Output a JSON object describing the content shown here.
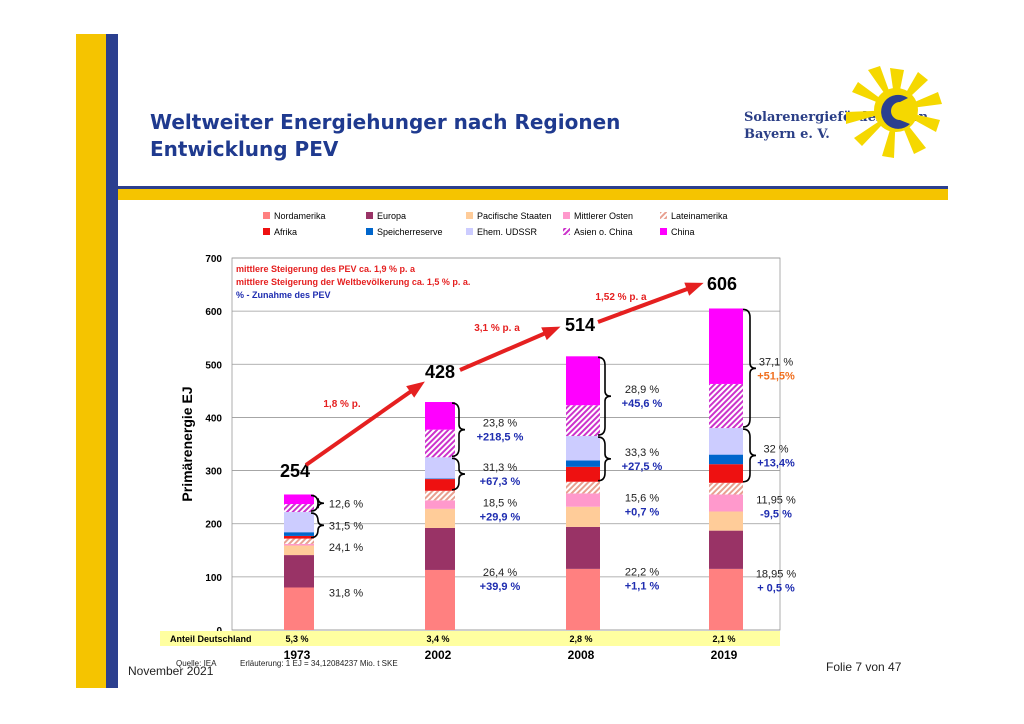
{
  "slide": {
    "title1": "Weltweiter Energiehunger nach Regionen",
    "title2": "Entwicklung PEV",
    "logo_line1": "Solarenergieförderverein",
    "logo_line2": "Bayern e. V.",
    "footer_left": "November 2021",
    "footer_right": "Folie 7 von 47",
    "colors": {
      "brand_yellow": "#F5C400",
      "brand_blue": "#2B3F8F",
      "title_blue": "#1F3A8F"
    }
  },
  "chart_data": {
    "type": "bar",
    "stacked": true,
    "ylabel": "Primärenergie EJ",
    "ylim": [
      0,
      700
    ],
    "yticks": [
      0,
      100,
      200,
      300,
      400,
      500,
      600,
      700
    ],
    "grid": true,
    "legend_position": "top",
    "categories": [
      "1973",
      "2002",
      "2008",
      "2019"
    ],
    "totals": [
      "254",
      "428",
      "514",
      "606"
    ],
    "series": [
      {
        "name": "Nordamerika",
        "color": "#FF8080",
        "values": [
          80,
          113,
          115,
          115
        ]
      },
      {
        "name": "Europa",
        "color": "#993366",
        "values": [
          61,
          79,
          79,
          72
        ]
      },
      {
        "name": "Pacifische Staaten",
        "color": "#FFCC99",
        "values": [
          18,
          36,
          38,
          36
        ]
      },
      {
        "name": "Mittlerer Osten",
        "color": "#FF99CC",
        "values": [
          3,
          16,
          25,
          32
        ]
      },
      {
        "name": "Lateinamerika",
        "color": "#E8A090",
        "values": [
          10,
          18,
          22,
          22
        ],
        "pattern": "hatch"
      },
      {
        "name": "Afrika",
        "color": "#EE1111",
        "values": [
          5,
          22,
          28,
          35
        ]
      },
      {
        "name": "Speicherreserve",
        "color": "#0066CC",
        "values": [
          7,
          1,
          12,
          18
        ]
      },
      {
        "name": "Ehem. UDSSR",
        "color": "#CCCCFF",
        "values": [
          38,
          40,
          46,
          50
        ]
      },
      {
        "name": "Asien o. China",
        "color": "#CC33CC",
        "values": [
          15,
          52,
          58,
          83
        ],
        "pattern": "hatch"
      },
      {
        "name": "China",
        "color": "#FF00FF",
        "values": [
          18,
          52,
          92,
          142
        ]
      }
    ],
    "brace_labels": [
      [
        {
          "pct": "12,6 %",
          "change": ""
        },
        {
          "pct": "31,5 %",
          "change": ""
        },
        {
          "pct": "24,1 %",
          "change": ""
        },
        {
          "pct": "31,8 %",
          "change": ""
        }
      ],
      [
        {
          "pct": "23,8 %",
          "change": "+218,5 %"
        },
        {
          "pct": "31,3 %",
          "change": "+67,3 %"
        },
        {
          "pct": "18,5 %",
          "change": "+29,9 %"
        },
        {
          "pct": "26,4 %",
          "change": "+39,9 %"
        }
      ],
      [
        {
          "pct": "28,9 %",
          "change": "+45,6 %"
        },
        {
          "pct": "33,3 %",
          "change": "+27,5 %"
        },
        {
          "pct": "15,6 %",
          "change": "+0,7 %"
        },
        {
          "pct": "22,2 %",
          "change": "+1,1 %"
        }
      ],
      [
        {
          "pct": "37,1 %",
          "change": "+51,5%"
        },
        {
          "pct": "32 %",
          "change": "+13,4%"
        },
        {
          "pct": "11,95 %",
          "change": "-9,5 %"
        },
        {
          "pct": "18,95 %",
          "change": "+ 0,5 %"
        }
      ]
    ],
    "growth_arrows": [
      "1,8 % p.",
      "3,1 % p. a",
      "1,52 % p. a"
    ],
    "annotations": [
      "mittlere Steigerung des PEV ca. 1,9 % p. a",
      "mittlere Steigerung der Weltbevölkerung ca. 1,5 % p. a.",
      " % - Zunahme des PEV"
    ],
    "anteil_label": "Anteil Deutschland",
    "anteil_deutschland": [
      "5,3 %",
      "3,4 %",
      "2,8 %",
      "2,1 %"
    ],
    "source": "Quelle: IEA",
    "note": "Erläuterung: 1 EJ = 34,12084237 Mio. t SKE"
  }
}
